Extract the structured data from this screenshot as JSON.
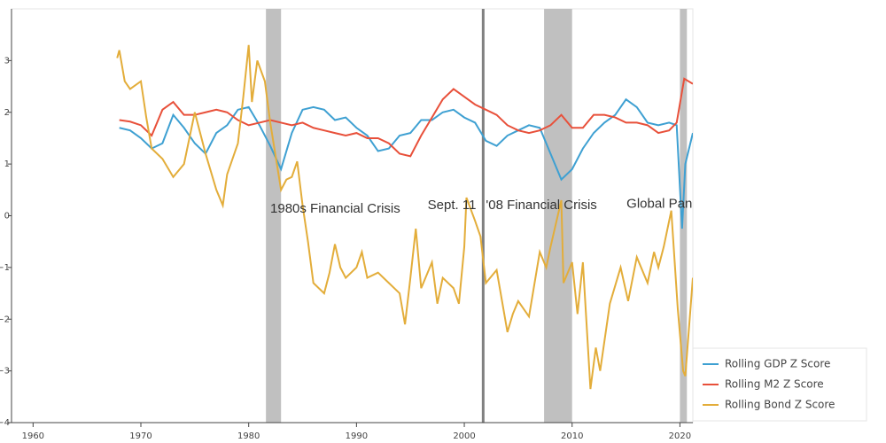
{
  "chart_data": {
    "type": "line",
    "xlim": [
      1958,
      2021.2
    ],
    "ylim": [
      -4,
      4
    ],
    "xticks": [
      1960,
      1970,
      1980,
      1990,
      2000,
      2010,
      2020
    ],
    "yticks": [
      {
        "value": -4,
        "label": "−4"
      },
      {
        "value": -3,
        "label": "−3"
      },
      {
        "value": -2,
        "label": "−2"
      },
      {
        "value": -1,
        "label": "−1"
      },
      0,
      1,
      2,
      3
    ],
    "legend": "bottom_right_outside",
    "regions": [
      {
        "start": 1981.6,
        "end": 1983.0,
        "color": "#bdbdbd"
      },
      {
        "start": 2007.4,
        "end": 2010.0,
        "color": "#bdbdbd"
      },
      {
        "start": 2020.0,
        "end": 2020.65,
        "color": "#bdbdbd"
      }
    ],
    "vlines": [
      {
        "x": 2001.75,
        "color": "#808080"
      }
    ],
    "annotations": [
      {
        "text": "1980s Financial Crisis",
        "x": 1982.0,
        "y": 0.13
      },
      {
        "text": "Sept. 11",
        "x": 1996.6,
        "y": 0.2
      },
      {
        "text": "'08 Financial Crisis",
        "x": 2002.0,
        "y": 0.2
      },
      {
        "text": "Global Pan",
        "x": 2015.05,
        "y": 0.22
      }
    ],
    "series": [
      {
        "name": "Rolling GDP Z Score",
        "color": "#3ea0d2",
        "x": [
          1968,
          1969,
          1970,
          1971,
          1972,
          1973,
          1974,
          1975,
          1976,
          1977,
          1978,
          1979,
          1980,
          1981,
          1982,
          1983,
          1984,
          1985,
          1986,
          1987,
          1988,
          1989,
          1990,
          1991,
          1992,
          1993,
          1994,
          1995,
          1996,
          1997,
          1998,
          1999,
          2000,
          2001,
          2002,
          2003,
          2004,
          2005,
          2006,
          2007,
          2008,
          2009,
          2010,
          2011,
          2012,
          2013,
          2014,
          2015,
          2016,
          2017,
          2018,
          2019,
          2019.7,
          2020.2,
          2020.5,
          2021.2
        ],
        "values": [
          1.7,
          1.65,
          1.5,
          1.3,
          1.4,
          1.95,
          1.7,
          1.4,
          1.2,
          1.6,
          1.75,
          2.05,
          2.1,
          1.75,
          1.35,
          0.9,
          1.6,
          2.05,
          2.1,
          2.05,
          1.85,
          1.9,
          1.7,
          1.55,
          1.25,
          1.3,
          1.55,
          1.6,
          1.85,
          1.85,
          2.0,
          2.05,
          1.9,
          1.8,
          1.45,
          1.35,
          1.55,
          1.65,
          1.75,
          1.7,
          1.2,
          0.7,
          0.9,
          1.3,
          1.6,
          1.8,
          1.95,
          2.25,
          2.1,
          1.8,
          1.75,
          1.8,
          1.75,
          -0.25,
          1.0,
          1.6
        ]
      },
      {
        "name": "Rolling M2 Z Score",
        "color": "#e8503a",
        "x": [
          1968,
          1969,
          1970,
          1971,
          1972,
          1973,
          1974,
          1975,
          1976,
          1977,
          1978,
          1979,
          1980,
          1981,
          1982,
          1983,
          1984,
          1985,
          1986,
          1987,
          1988,
          1989,
          1990,
          1991,
          1992,
          1993,
          1994,
          1995,
          1996,
          1997,
          1998,
          1999,
          2000,
          2001,
          2002,
          2003,
          2004,
          2005,
          2006,
          2007,
          2008,
          2009,
          2010,
          2011,
          2012,
          2013,
          2014,
          2015,
          2016,
          2017,
          2018,
          2019,
          2019.7,
          2020.4,
          2021.2
        ],
        "values": [
          1.85,
          1.82,
          1.75,
          1.55,
          2.05,
          2.2,
          1.95,
          1.95,
          2.0,
          2.05,
          2.0,
          1.85,
          1.75,
          1.8,
          1.85,
          1.8,
          1.75,
          1.8,
          1.7,
          1.65,
          1.6,
          1.55,
          1.6,
          1.5,
          1.5,
          1.4,
          1.2,
          1.15,
          1.55,
          1.9,
          2.25,
          2.45,
          2.3,
          2.15,
          2.05,
          1.95,
          1.75,
          1.65,
          1.6,
          1.65,
          1.75,
          1.95,
          1.7,
          1.7,
          1.95,
          1.95,
          1.9,
          1.8,
          1.8,
          1.75,
          1.6,
          1.65,
          1.8,
          2.65,
          2.55
        ]
      },
      {
        "name": "Rolling Bond Z Score",
        "color": "#e3ad3a",
        "x": [
          1967.8,
          1968,
          1968.5,
          1969,
          1970,
          1970.5,
          1971,
          1972,
          1973,
          1974,
          1975,
          1976,
          1977,
          1977.6,
          1978,
          1979,
          1979.5,
          1980,
          1980.3,
          1980.8,
          1981.5,
          1982,
          1983,
          1983.5,
          1984,
          1984.5,
          1985,
          1985.5,
          1986,
          1987,
          1987.5,
          1988,
          1988.5,
          1989,
          1990,
          1990.5,
          1991,
          1992,
          1993,
          1994,
          1994.5,
          1995,
          1995.5,
          1996,
          1997,
          1997.5,
          1998,
          1999,
          1999.5,
          2000,
          2000.2,
          2001,
          2001.5,
          2002,
          2003,
          2004,
          2004.5,
          2005,
          2006,
          2007,
          2007.6,
          2008,
          2009,
          2009.2,
          2010,
          2010.5,
          2011,
          2011.7,
          2012.2,
          2012.6,
          2013.5,
          2014.5,
          2015.2,
          2016,
          2017,
          2017.6,
          2018,
          2018.5,
          2019.2,
          2019.8,
          2020.3,
          2020.5,
          2021.2
        ],
        "values": [
          3.05,
          3.2,
          2.6,
          2.45,
          2.6,
          1.9,
          1.3,
          1.1,
          0.75,
          1.0,
          2.0,
          1.2,
          0.5,
          0.2,
          0.8,
          1.4,
          2.3,
          3.3,
          2.2,
          3.0,
          2.6,
          1.8,
          0.5,
          0.7,
          0.75,
          1.05,
          0.2,
          -0.5,
          -1.3,
          -1.5,
          -1.1,
          -0.55,
          -1.0,
          -1.2,
          -1.0,
          -0.7,
          -1.2,
          -1.1,
          -1.3,
          -1.5,
          -2.1,
          -1.2,
          -0.25,
          -1.4,
          -0.9,
          -1.7,
          -1.2,
          -1.4,
          -1.7,
          -0.6,
          0.35,
          -0.1,
          -0.4,
          -1.3,
          -1.05,
          -2.25,
          -1.9,
          -1.65,
          -1.95,
          -0.7,
          -1.0,
          -0.6,
          0.3,
          -1.3,
          -0.9,
          -1.9,
          -0.9,
          -3.35,
          -2.55,
          -3.0,
          -1.7,
          -1.0,
          -1.65,
          -0.8,
          -1.3,
          -0.7,
          -1.0,
          -0.6,
          0.1,
          -1.8,
          -3.0,
          -3.1,
          -1.2
        ]
      }
    ]
  }
}
